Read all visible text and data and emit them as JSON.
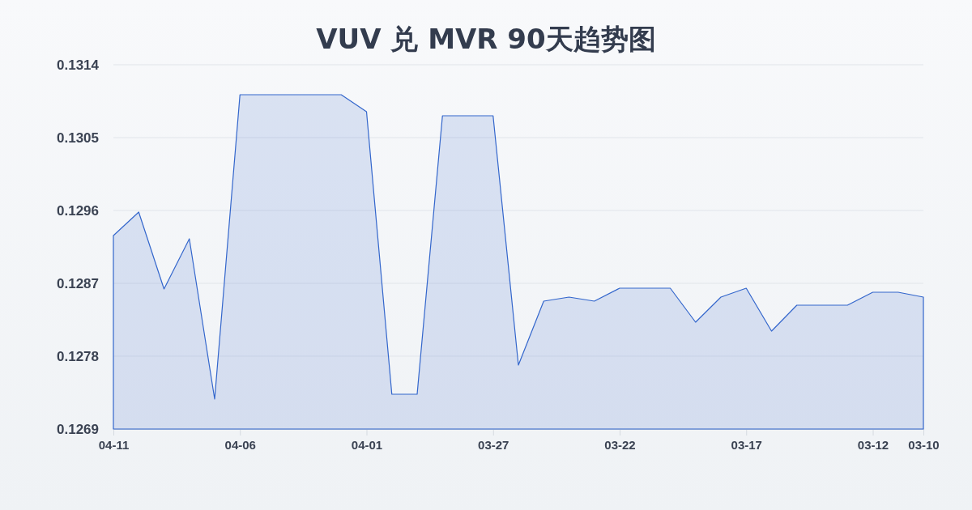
{
  "chart_data": {
    "type": "area",
    "title": "VUV 兑 MVR 90天趋势图",
    "x": [
      "--04-11",
      "--04-10",
      "--04-09",
      "--04-08",
      "--04-07",
      "--04-06",
      "--04-05",
      "--04-04",
      "--04-03",
      "--04-02",
      "--04-01",
      "--03-31",
      "--03-30",
      "--03-29",
      "--03-28",
      "--03-27",
      "--03-26",
      "--03-25",
      "--03-24",
      "--03-23",
      "--03-22",
      "--03-21",
      "--03-20",
      "--03-19",
      "--03-18",
      "--03-17",
      "--03-16",
      "--03-15",
      "--03-14",
      "--03-13",
      "--03-12",
      "--03-11",
      "--03-10"
    ],
    "series": [
      {
        "color": "#3366cc",
        "values": [
          0.12929,
          0.12958,
          0.12863,
          0.12925,
          0.12727,
          0.13103,
          0.13103,
          0.13103,
          0.13103,
          0.13103,
          0.13082,
          0.12733,
          0.12733,
          0.13077,
          0.13077,
          0.13077,
          0.12769,
          0.12848,
          0.12853,
          0.12848,
          0.12864,
          0.12864,
          0.12864,
          0.12822,
          0.12853,
          0.12864,
          0.12811,
          0.12843,
          0.12843,
          0.12843,
          0.12859,
          0.12859,
          0.12853
        ]
      }
    ],
    "xlim": [
      "--04-11",
      "--03-10"
    ],
    "xticks": [
      {
        "value": "--04-11",
        "label": "04-11"
      },
      {
        "value": "--04-06",
        "label": "04-06"
      },
      {
        "value": "--04-01",
        "label": "04-01"
      },
      {
        "value": "--03-27",
        "label": "03-27"
      },
      {
        "value": "--03-22",
        "label": "03-22"
      },
      {
        "value": "--03-17",
        "label": "03-17"
      },
      {
        "value": "--03-12",
        "label": "03-12"
      },
      {
        "value": "--03-10",
        "label": "03-10"
      }
    ],
    "ylim": [
      0.1269,
      0.1314
    ],
    "yticks": [
      0.1269,
      0.1278,
      0.1287,
      0.1296,
      0.1305,
      0.1314
    ],
    "grid": "y"
  }
}
